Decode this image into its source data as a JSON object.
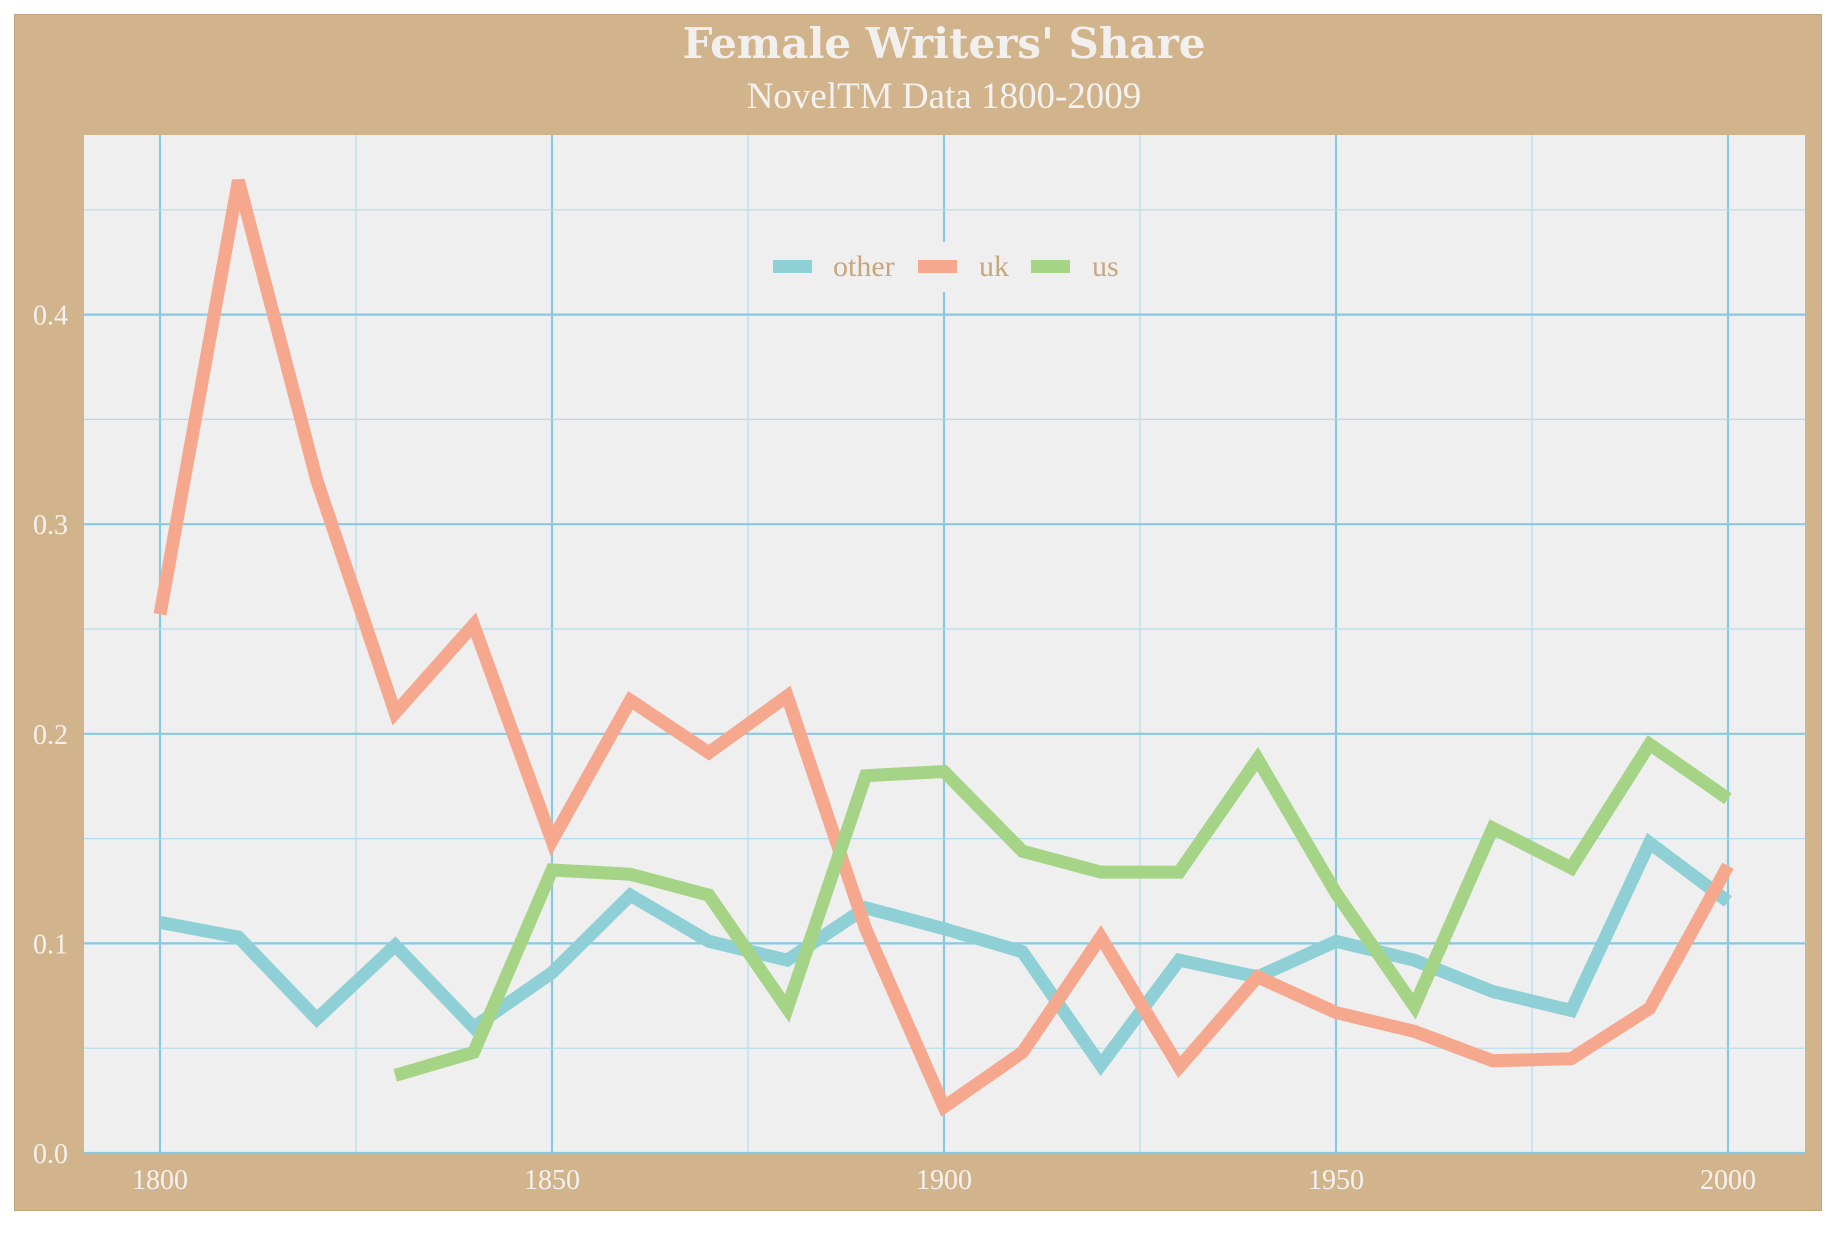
{
  "chart_data": {
    "type": "line",
    "title": "Female Writers' Share",
    "subtitle": "NovelTM Data 1800-2009",
    "xlabel": "",
    "ylabel": "",
    "xlim": [
      1790,
      2010
    ],
    "ylim": [
      0,
      0.487
    ],
    "x_ticks": [
      "1800",
      "1850",
      "1900",
      "1950",
      "2000"
    ],
    "y_ticks": [
      "0.0",
      "0.1",
      "0.2",
      "0.3",
      "0.4"
    ],
    "grid": true,
    "legend_position": "top-center",
    "series": [
      {
        "name": "other",
        "color": "#8fd0d6",
        "x": [
          1800,
          1810,
          1820,
          1830,
          1840,
          1850,
          1860,
          1870,
          1880,
          1890,
          1900,
          1910,
          1920,
          1930,
          1940,
          1950,
          1960,
          1970,
          1980,
          1990,
          2000
        ],
        "y": [
          0.11,
          0.103,
          0.064,
          0.099,
          0.06,
          0.086,
          0.123,
          0.101,
          0.092,
          0.117,
          0.107,
          0.096,
          0.042,
          0.092,
          0.084,
          0.101,
          0.092,
          0.077,
          0.068,
          0.148,
          0.12
        ]
      },
      {
        "name": "uk",
        "color": "#f6a88f",
        "x": [
          1800,
          1810,
          1820,
          1830,
          1840,
          1850,
          1860,
          1870,
          1880,
          1890,
          1900,
          1910,
          1920,
          1930,
          1940,
          1950,
          1960,
          1970,
          1980,
          1990,
          2000
        ],
        "y": [
          0.257,
          0.464,
          0.321,
          0.21,
          0.252,
          0.149,
          0.216,
          0.191,
          0.218,
          0.107,
          0.022,
          0.048,
          0.103,
          0.041,
          0.084,
          0.067,
          0.058,
          0.044,
          0.045,
          0.069,
          0.137
        ]
      },
      {
        "name": "us",
        "color": "#a6d487",
        "x": [
          1830,
          1840,
          1850,
          1860,
          1870,
          1880,
          1890,
          1900,
          1910,
          1920,
          1930,
          1940,
          1950,
          1960,
          1970,
          1980,
          1990,
          2000
        ],
        "y": [
          0.037,
          0.048,
          0.135,
          0.133,
          0.123,
          0.069,
          0.18,
          0.182,
          0.144,
          0.134,
          0.134,
          0.188,
          0.124,
          0.07,
          0.155,
          0.136,
          0.195,
          0.169
        ]
      }
    ]
  },
  "colors": {
    "frame_background": "#d2b48c",
    "plot_background": "#efefef",
    "grid_major": "#88c9e2",
    "grid_minor": "#b3dcec",
    "text_light": "#f4f2f0",
    "legend_text": "#c9a57c"
  }
}
